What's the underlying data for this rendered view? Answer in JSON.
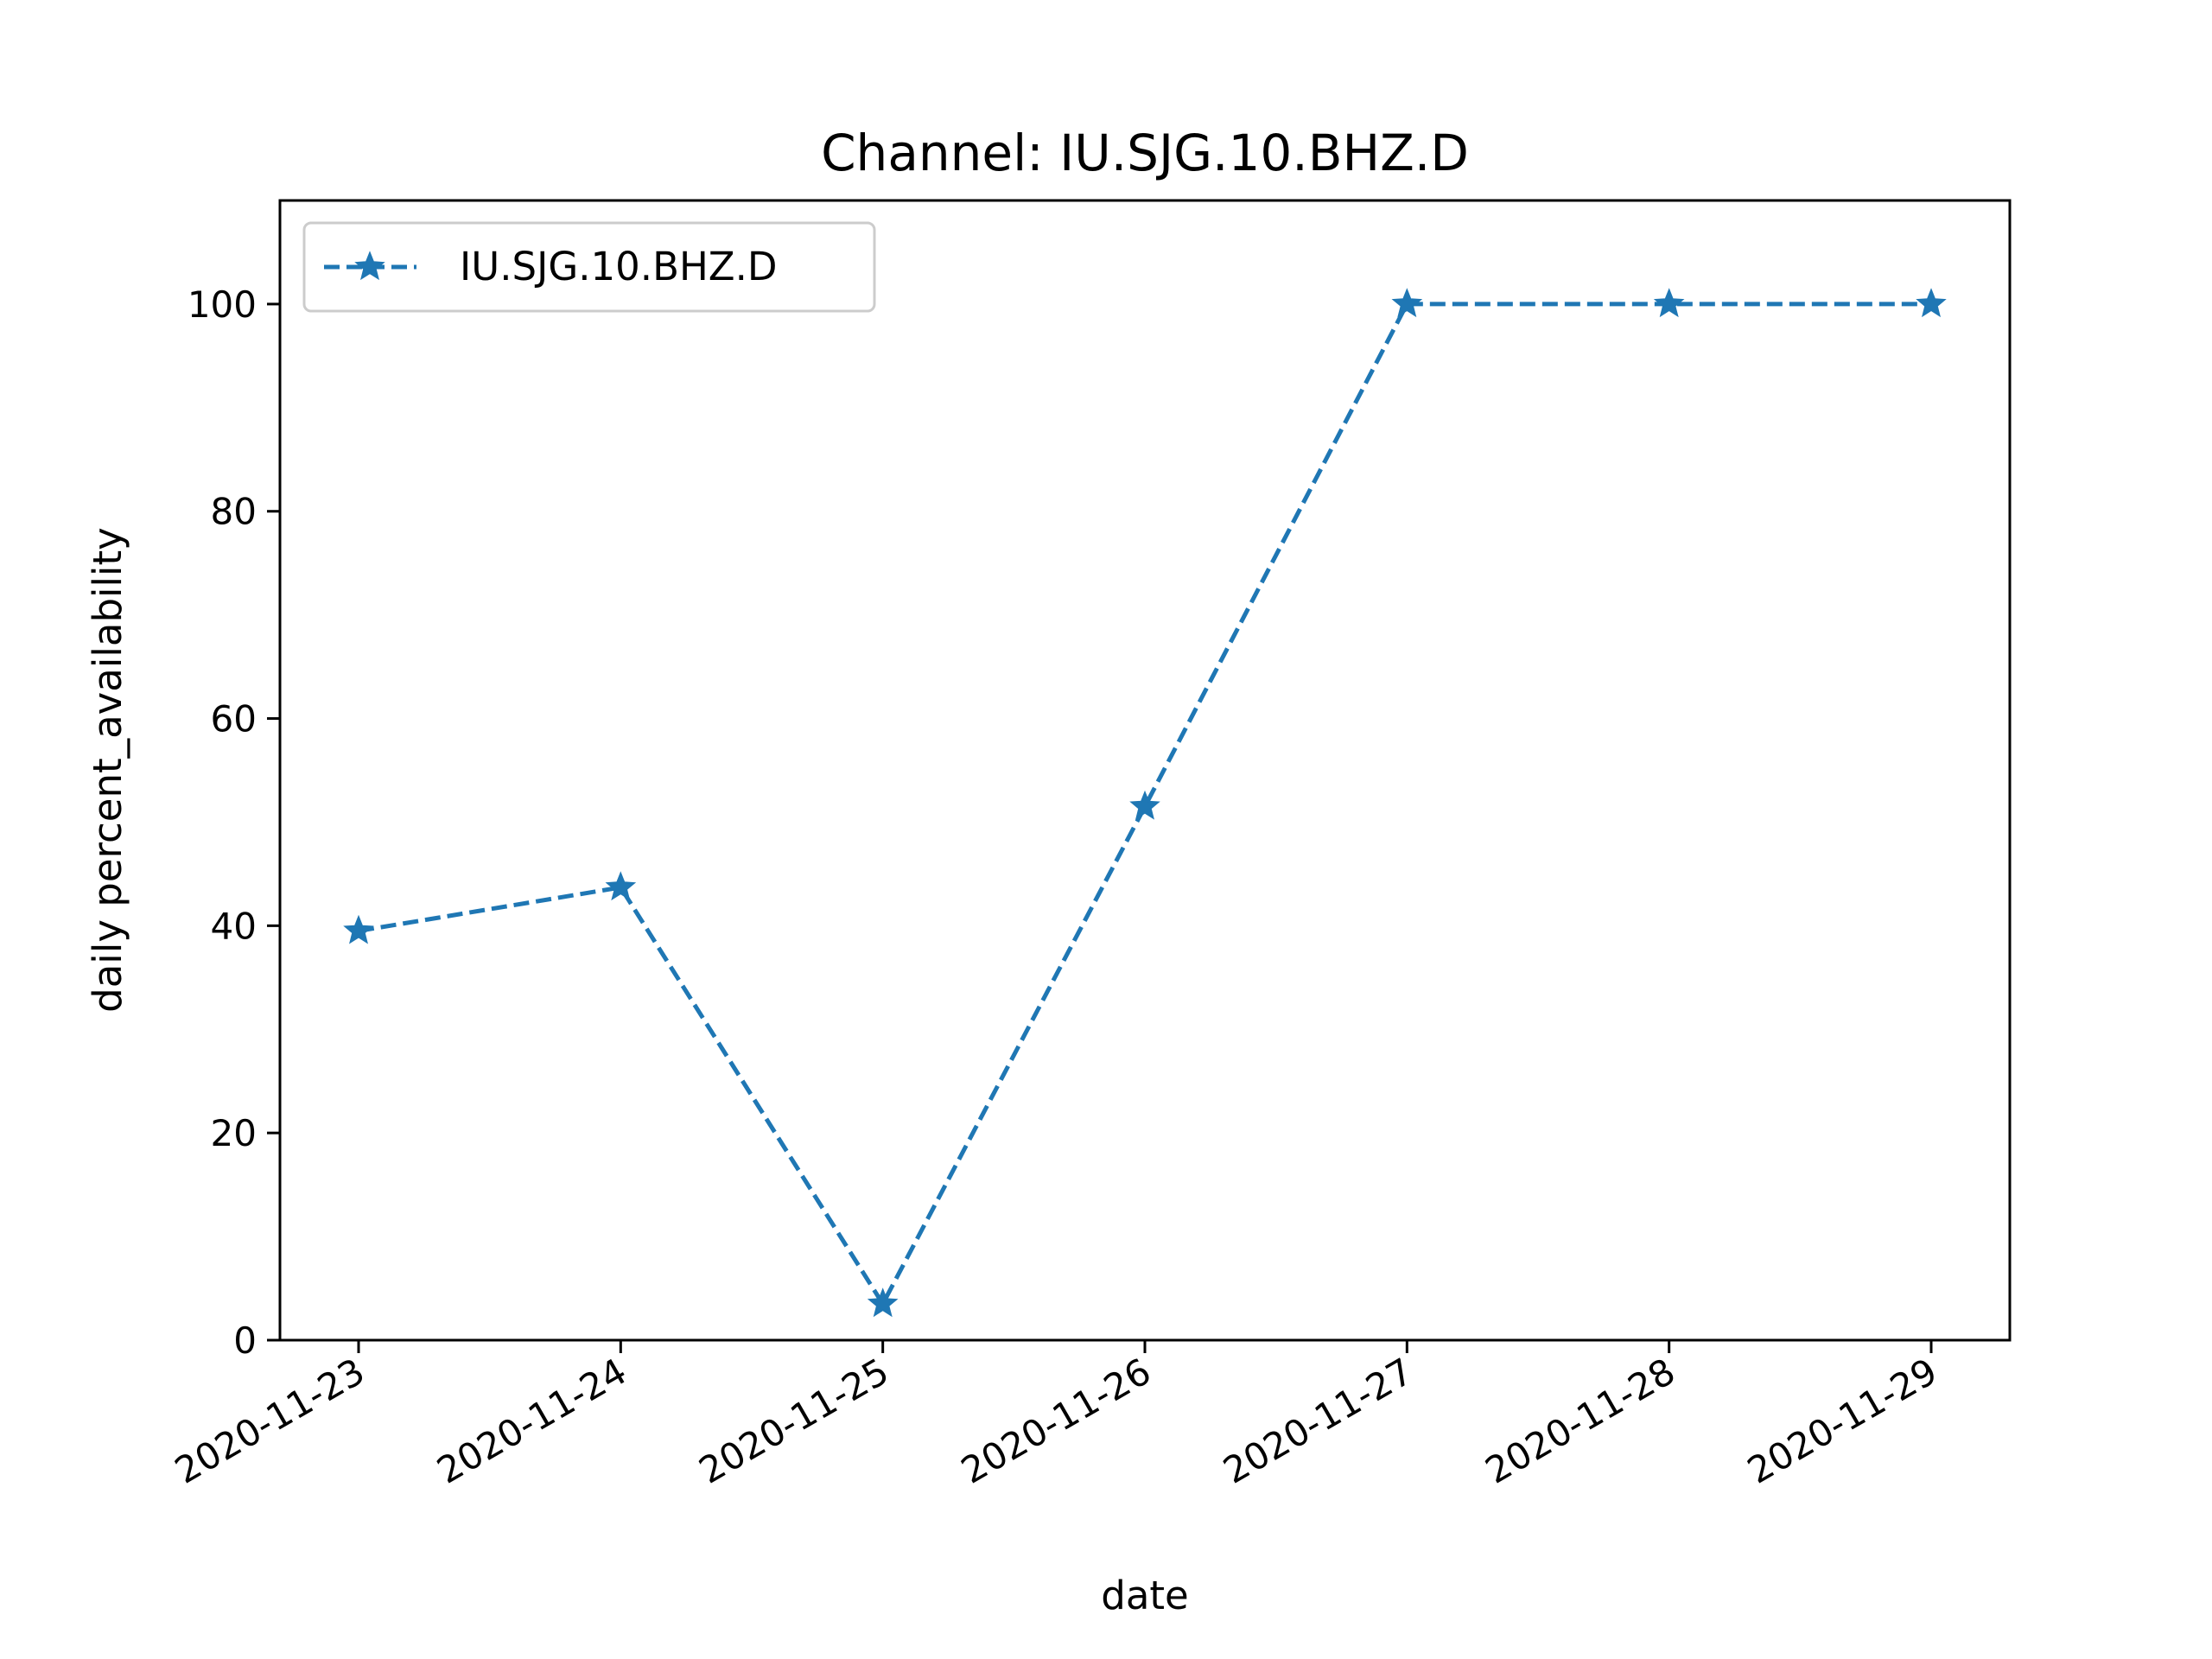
{
  "chart_data": {
    "type": "line",
    "title": "Channel: IU.SJG.10.BHZ.D",
    "xlabel": "date",
    "ylabel": "daily percent_availability",
    "x": [
      "2020-11-23",
      "2020-11-24",
      "2020-11-25",
      "2020-11-26",
      "2020-11-27",
      "2020-11-28",
      "2020-11-29"
    ],
    "series": [
      {
        "name": "IU.SJG.10.BHZ.D",
        "values": [
          39.5,
          43.7,
          3.5,
          51.5,
          100,
          100,
          100
        ],
        "color": "#1f77b4",
        "line_style": "dashed",
        "marker": "star"
      }
    ],
    "ylim": [
      0,
      110
    ],
    "yticks": [
      0,
      20,
      40,
      60,
      80,
      100
    ],
    "grid": false,
    "legend_position": "top-left"
  }
}
